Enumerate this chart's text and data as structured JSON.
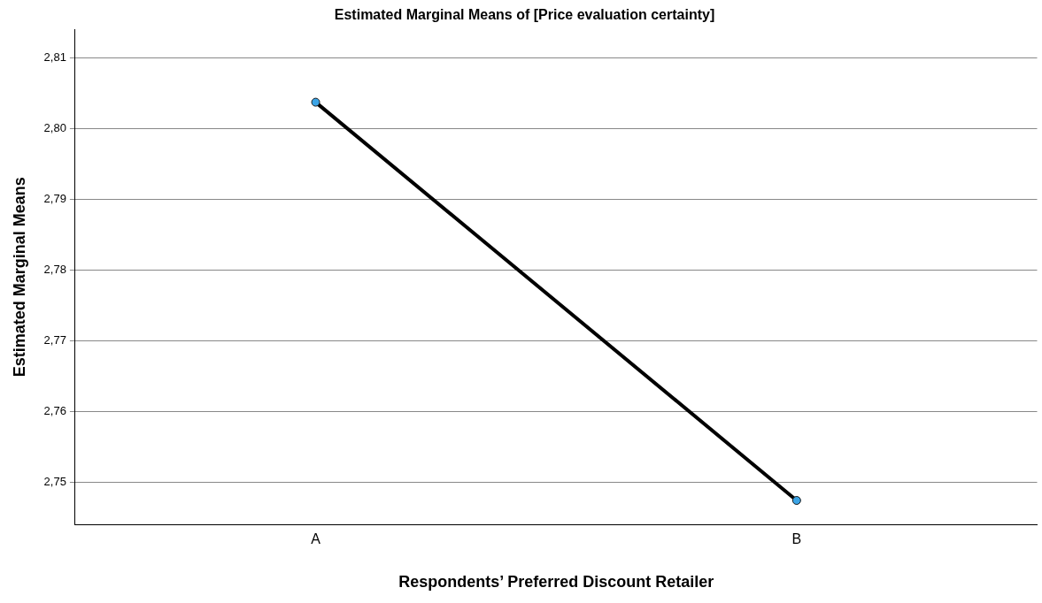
{
  "chart_data": {
    "type": "line",
    "title": "Estimated Marginal Means of [Price evaluation certainty]",
    "xlabel": "Respondents’ Preferred Discount Retailer",
    "ylabel": "Estimated Marginal Means",
    "categories": [
      "A",
      "B"
    ],
    "series": [
      {
        "color": "#000000",
        "values": [
          2.8037,
          2.7474
        ]
      }
    ],
    "ylim": [
      2.744,
      2.814
    ],
    "yticks": [
      {
        "value": 2.75,
        "label": "2,75"
      },
      {
        "value": 2.76,
        "label": "2,76"
      },
      {
        "value": 2.77,
        "label": "2,77"
      },
      {
        "value": 2.78,
        "label": "2,78"
      },
      {
        "value": 2.79,
        "label": "2,79"
      },
      {
        "value": 2.8,
        "label": "2,80"
      },
      {
        "value": 2.81,
        "label": "2,81"
      }
    ],
    "grid": "y",
    "legend": false,
    "marker": "circle",
    "line_style": "solid"
  }
}
